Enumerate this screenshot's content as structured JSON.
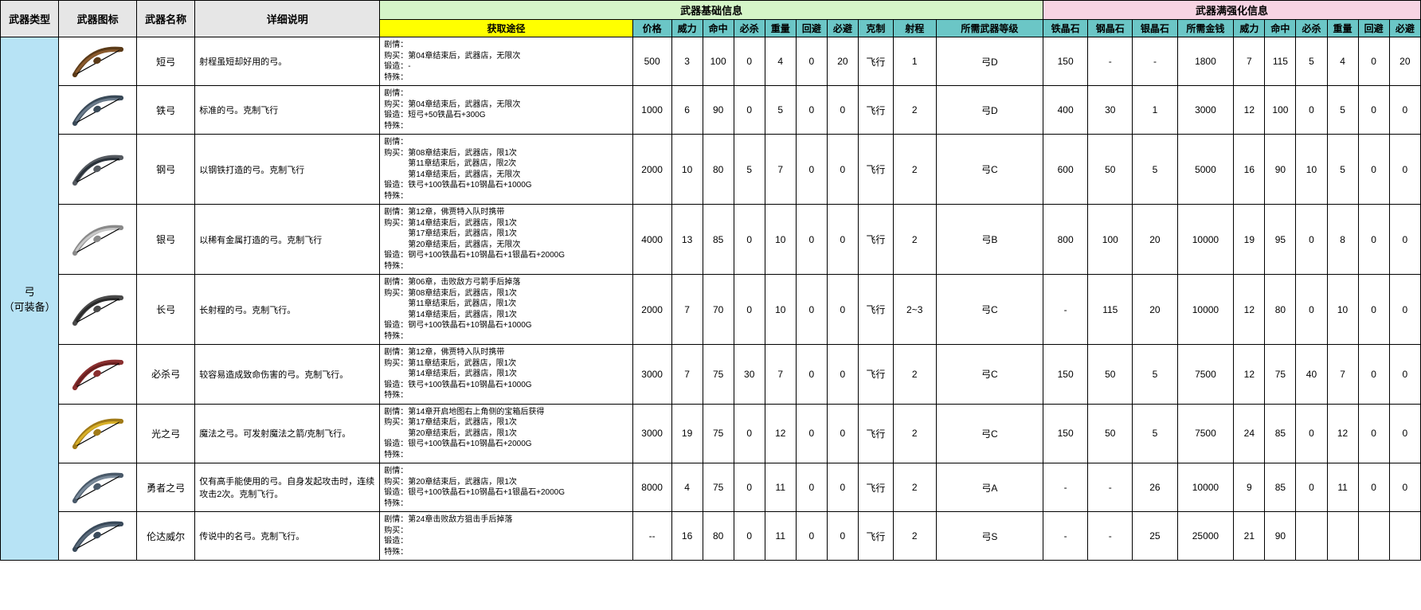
{
  "headers": {
    "type": "武器类型",
    "icon": "武器图标",
    "name": "武器名称",
    "desc": "详细说明",
    "base_group": "武器基础信息",
    "max_group": "武器满强化信息",
    "acquire": "获取途径",
    "base": [
      "价格",
      "威力",
      "命中",
      "必杀",
      "重量",
      "回避",
      "必避",
      "克制",
      "射程",
      "所需武器等级"
    ],
    "mats": [
      "铁晶石",
      "钢晶石",
      "银晶石",
      "所需金钱"
    ],
    "max": [
      "威力",
      "命中",
      "必杀",
      "重量",
      "回避",
      "必避"
    ]
  },
  "field_labels": {
    "plot": "剧情：",
    "buy": "购买：",
    "forge": "锻造：",
    "special": "特殊："
  },
  "type_label": "弓\n（可装备）",
  "col_widths": {
    "type": 60,
    "icon": 80,
    "name": 60,
    "desc": 190,
    "acquire": 260,
    "base": [
      40,
      32,
      32,
      32,
      32,
      32,
      32,
      36,
      44,
      110
    ],
    "mat": [
      46,
      46,
      46,
      58
    ],
    "max": [
      32,
      32,
      32,
      32,
      32,
      32
    ]
  },
  "colors": {
    "border": "#000000",
    "hdr_grey": "#e6e6e6",
    "hdr_green": "#d5f5c8",
    "hdr_pink": "#f7d4e3",
    "hdr_yellow": "#ffff00",
    "hdr_teal": "#6bc6c6",
    "type_bg": "#b7e3f5",
    "row_bg": "#ffffff",
    "text": "#000000"
  },
  "weapons": [
    {
      "name": "短弓",
      "icon_colors": [
        "#8a5a2d",
        "#5a3a18"
      ],
      "desc": "射程虽短却好用的弓。",
      "plot": "",
      "buy": [
        "第04章结束后，武器店，无限次"
      ],
      "forge": "-",
      "special": "",
      "base": [
        "500",
        "3",
        "100",
        "0",
        "4",
        "0",
        "20",
        "飞行",
        "1",
        "弓D"
      ],
      "mats": [
        "150",
        "-",
        "-",
        "1800"
      ],
      "max": [
        "7",
        "115",
        "5",
        "4",
        "0",
        "20"
      ]
    },
    {
      "name": "铁弓",
      "icon_colors": [
        "#6a7a8a",
        "#3a4a58"
      ],
      "desc": "标准的弓。克制飞行",
      "plot": "",
      "buy": [
        "第04章结束后，武器店，无限次"
      ],
      "forge": "短弓+50铁晶石+300G",
      "special": "",
      "base": [
        "1000",
        "6",
        "90",
        "0",
        "5",
        "0",
        "0",
        "飞行",
        "2",
        "弓D"
      ],
      "mats": [
        "400",
        "30",
        "1",
        "3000"
      ],
      "max": [
        "12",
        "100",
        "0",
        "5",
        "0",
        "0"
      ]
    },
    {
      "name": "钢弓",
      "icon_colors": [
        "#2a323a",
        "#555a60"
      ],
      "desc": "以钢铁打造的弓。克制飞行",
      "plot": "",
      "buy": [
        "第08章结束后，武器店，限1次",
        "第11章结束后，武器店，限2次",
        "第14章结束后，武器店，无限次"
      ],
      "forge": "铁弓+100铁晶石+10钢晶石+1000G",
      "special": "",
      "base": [
        "2000",
        "10",
        "80",
        "5",
        "7",
        "0",
        "0",
        "飞行",
        "2",
        "弓C"
      ],
      "mats": [
        "600",
        "50",
        "5",
        "5000"
      ],
      "max": [
        "16",
        "90",
        "10",
        "5",
        "0",
        "0"
      ]
    },
    {
      "name": "银弓",
      "icon_colors": [
        "#c8c8c8",
        "#8a8a8a"
      ],
      "desc": "以稀有金属打造的弓。克制飞行",
      "plot": "第12章，佛贾特入队时携带",
      "buy": [
        "第14章结束后，武器店，限1次",
        "第17章结束后，武器店，限1次",
        "第20章结束后，武器店，无限次"
      ],
      "forge": "钢弓+100铁晶石+10钢晶石+1银晶石+2000G",
      "special": "",
      "base": [
        "4000",
        "13",
        "85",
        "0",
        "10",
        "0",
        "0",
        "飞行",
        "2",
        "弓B"
      ],
      "mats": [
        "800",
        "100",
        "20",
        "10000"
      ],
      "max": [
        "19",
        "95",
        "0",
        "8",
        "0",
        "0"
      ]
    },
    {
      "name": "长弓",
      "icon_colors": [
        "#2a2a2a",
        "#4a4a4a"
      ],
      "desc": "长射程的弓。克制飞行。",
      "plot": "第06章，击败敌方弓箭手后掉落",
      "buy": [
        "第08章结束后，武器店，限1次",
        "第11章结束后，武器店，限1次",
        "第14章结束后，武器店，限1次"
      ],
      "forge": "钢弓+100铁晶石+10钢晶石+1000G",
      "special": "",
      "base": [
        "2000",
        "7",
        "70",
        "0",
        "10",
        "0",
        "0",
        "飞行",
        "2~3",
        "弓C"
      ],
      "mats": [
        "-",
        "115",
        "20",
        "10000"
      ],
      "max": [
        "12",
        "80",
        "0",
        "10",
        "0",
        "0"
      ]
    },
    {
      "name": "必杀弓",
      "icon_colors": [
        "#6a2020",
        "#8a3030"
      ],
      "desc": "较容易造成致命伤害的弓。克制飞行。",
      "plot": "第12章，佛贾特入队时携带",
      "buy": [
        "第11章结束后，武器店，限1次",
        "第14章结束后，武器店，限1次"
      ],
      "forge": "铁弓+100铁晶石+10钢晶石+1000G",
      "special": "",
      "base": [
        "3000",
        "7",
        "75",
        "30",
        "7",
        "0",
        "0",
        "飞行",
        "2",
        "弓C"
      ],
      "mats": [
        "150",
        "50",
        "5",
        "7500"
      ],
      "max": [
        "12",
        "75",
        "40",
        "7",
        "0",
        "0"
      ]
    },
    {
      "name": "光之弓",
      "icon_colors": [
        "#d8b028",
        "#a07a18"
      ],
      "desc": "魔法之弓。可发射魔法之箭/克制飞行。",
      "plot": "第14章开启地图右上角侧的宝箱后获得",
      "buy": [
        "第17章结束后，武器店，限1次",
        "第20章结束后，武器店，限1次"
      ],
      "forge": "银弓+100铁晶石+10钢晶石+2000G",
      "special": "",
      "base": [
        "3000",
        "19",
        "75",
        "0",
        "12",
        "0",
        "0",
        "飞行",
        "2",
        "弓C"
      ],
      "mats": [
        "150",
        "50",
        "5",
        "7500"
      ],
      "max": [
        "24",
        "85",
        "0",
        "12",
        "0",
        "0"
      ]
    },
    {
      "name": "勇者之弓",
      "icon_colors": [
        "#7a8a9a",
        "#4a5a6a"
      ],
      "desc": "仅有高手能使用的弓。自身发起攻击时，连续攻击2次。克制飞行。",
      "plot": "",
      "buy": [
        "第20章结束后，武器店，限1次"
      ],
      "forge": "银弓+100铁晶石+10钢晶石+1银晶石+2000G",
      "special": "",
      "base": [
        "8000",
        "4",
        "75",
        "0",
        "11",
        "0",
        "0",
        "飞行",
        "2",
        "弓A"
      ],
      "mats": [
        "-",
        "-",
        "26",
        "10000"
      ],
      "max": [
        "9",
        "85",
        "0",
        "11",
        "0",
        "0"
      ]
    },
    {
      "name": "伦达威尔",
      "icon_colors": [
        "#5a6a7a",
        "#3a4a5a"
      ],
      "desc": "传说中的名弓。克制飞行。",
      "plot": "第24章击败敌方狙击手后掉落",
      "buy": [],
      "forge": "",
      "special": "",
      "base": [
        "--",
        "16",
        "80",
        "0",
        "11",
        "0",
        "0",
        "飞行",
        "2",
        "弓S"
      ],
      "mats": [
        "-",
        "-",
        "25",
        "25000"
      ],
      "max": [
        "21",
        "90",
        "",
        "",
        "",
        ""
      ]
    }
  ]
}
